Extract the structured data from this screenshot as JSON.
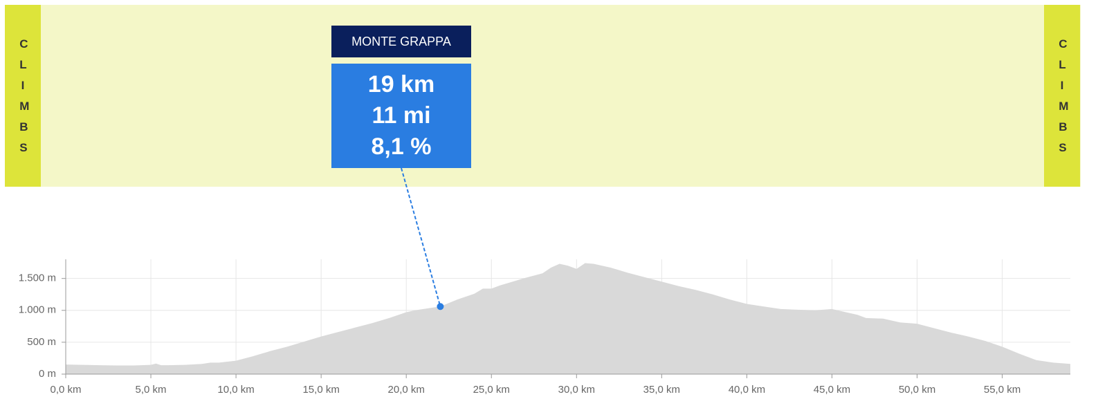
{
  "chart_data": {
    "type": "area",
    "side_label": "CLIMBS",
    "color": "#d9d9d9",
    "grid": true,
    "x": [
      0,
      1,
      2,
      3,
      4,
      5,
      5.3,
      5.6,
      6,
      7,
      8,
      8.5,
      9,
      10,
      11,
      12,
      13,
      14,
      15,
      16,
      17,
      18,
      19,
      20,
      20.5,
      21,
      22,
      23,
      24,
      24.5,
      25,
      25.5,
      26,
      27,
      28,
      28.5,
      29,
      29.5,
      30,
      30.5,
      31,
      32,
      33,
      34,
      35,
      36,
      37,
      38,
      39,
      40,
      41,
      42,
      43,
      44,
      45,
      46,
      46.5,
      47,
      48,
      49,
      50,
      51,
      52,
      53,
      54,
      55,
      56,
      57,
      58,
      59
    ],
    "values": [
      150,
      145,
      140,
      135,
      135,
      145,
      165,
      140,
      140,
      145,
      160,
      180,
      180,
      210,
      280,
      360,
      430,
      510,
      590,
      660,
      730,
      800,
      880,
      970,
      1000,
      1020,
      1060,
      1170,
      1260,
      1340,
      1340,
      1390,
      1430,
      1510,
      1580,
      1670,
      1730,
      1700,
      1650,
      1740,
      1730,
      1670,
      1590,
      1520,
      1450,
      1380,
      1320,
      1250,
      1170,
      1100,
      1060,
      1020,
      1010,
      1000,
      1020,
      960,
      930,
      880,
      870,
      810,
      790,
      720,
      650,
      590,
      520,
      430,
      320,
      220,
      180,
      160
    ],
    "xlim": [
      0,
      59
    ],
    "ylim": [
      0,
      1800
    ],
    "xticks": [
      {
        "value": 0,
        "label": "0,0 km"
      },
      {
        "value": 5,
        "label": "5,0 km"
      },
      {
        "value": 10,
        "label": "10,0 km"
      },
      {
        "value": 15,
        "label": "15,0 km"
      },
      {
        "value": 20,
        "label": "20,0 km"
      },
      {
        "value": 25,
        "label": "25,0 km"
      },
      {
        "value": 30,
        "label": "30,0 km"
      },
      {
        "value": 35,
        "label": "35,0 km"
      },
      {
        "value": 40,
        "label": "40,0 km"
      },
      {
        "value": 45,
        "label": "45,0 km"
      },
      {
        "value": 50,
        "label": "50,0 km"
      },
      {
        "value": 55,
        "label": "55,0 km"
      }
    ],
    "yticks": [
      {
        "value": 0,
        "label": "0 m"
      },
      {
        "value": 500,
        "label": "500 m"
      },
      {
        "value": 1000,
        "label": "1.000 m"
      },
      {
        "value": 1500,
        "label": "1.500 m"
      }
    ],
    "annotation": {
      "label": "MONTE GRAPPA",
      "lines": [
        "19 km",
        "11 mi",
        "8,1 %"
      ],
      "x": 22,
      "y": 1060,
      "color": "#2a7de1"
    }
  }
}
